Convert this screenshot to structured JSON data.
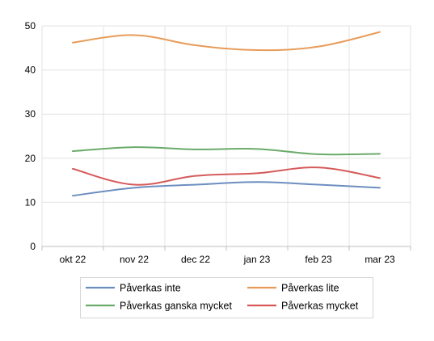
{
  "chart_data": {
    "type": "line",
    "categories": [
      "okt 22",
      "nov 22",
      "dec 22",
      "jan 23",
      "feb 23",
      "mar 23"
    ],
    "series": [
      {
        "name": "Påverkas inte",
        "color": "#6c8ebf",
        "values": [
          11.5,
          13.3,
          14.0,
          14.6,
          14.0,
          13.3
        ]
      },
      {
        "name": "Påverkas lite",
        "color": "#e89c5a",
        "values": [
          46.2,
          47.9,
          45.6,
          44.5,
          45.3,
          48.6
        ]
      },
      {
        "name": "Påverkas ganska mycket",
        "color": "#6aab6a",
        "values": [
          21.6,
          22.5,
          22.0,
          22.1,
          20.9,
          21.0
        ]
      },
      {
        "name": "Påverkas mycket",
        "color": "#d65a5a",
        "values": [
          17.6,
          14.0,
          16.0,
          16.6,
          17.9,
          15.5
        ]
      }
    ],
    "yticks": [
      0,
      10,
      20,
      30,
      40,
      50
    ],
    "ylim": [
      0,
      50
    ],
    "grid": true,
    "legend_position": "bottom"
  }
}
